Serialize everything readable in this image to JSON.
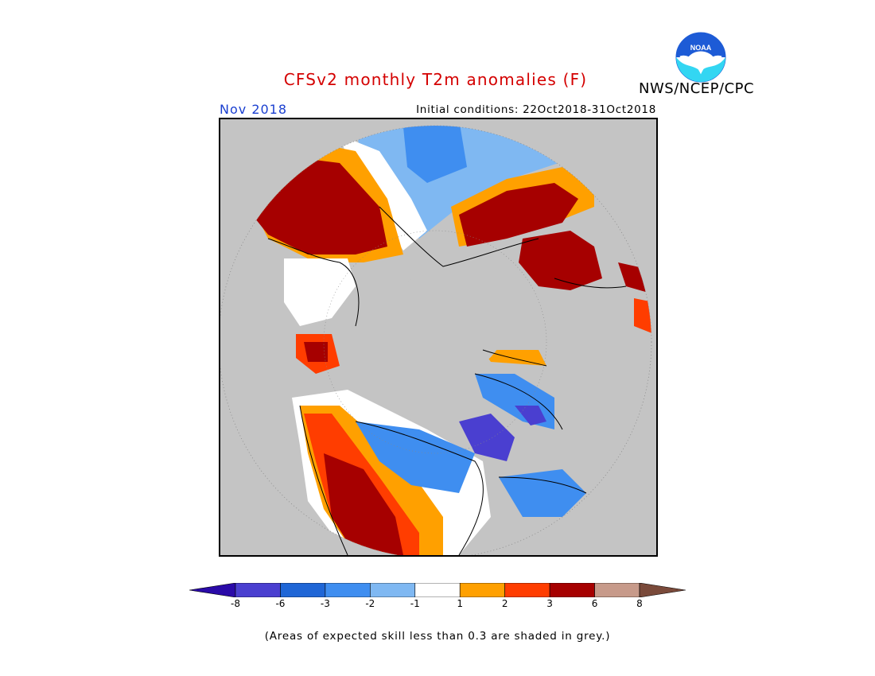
{
  "title": "CFSv2 monthly T2m anomalies (F)",
  "agency": "NWS/NCEP/CPC",
  "logo": {
    "text": "NOAA",
    "icon": "noaa-logo-icon",
    "colors": {
      "blue": "#1d5bd6",
      "cyan": "#33d6f2"
    }
  },
  "forecast_month": "Nov 2018",
  "initial_conditions": "Initial conditions: 22Oct2018-31Oct2018",
  "map": {
    "projection": "north polar stereographic",
    "missing_color": "#c4c4c4"
  },
  "legend": {
    "bins": [
      {
        "range": "< -8",
        "color": "#2a0aa8"
      },
      {
        "range": "-8 to -6",
        "color": "#4a3fd0"
      },
      {
        "range": "-6 to -3",
        "color": "#1f66d6"
      },
      {
        "range": "-3 to -2",
        "color": "#3f8ef0"
      },
      {
        "range": "-2 to -1",
        "color": "#7fb8f2"
      },
      {
        "range": "-1 to 1",
        "color": "#ffffff"
      },
      {
        "range": "1 to 2",
        "color": "#ffa000"
      },
      {
        "range": "2 to 3",
        "color": "#ff3d00"
      },
      {
        "range": "3 to 6",
        "color": "#a60000"
      },
      {
        "range": "6 to 8",
        "color": "#c79a8a"
      },
      {
        "range": "> 8",
        "color": "#7a4a3a"
      }
    ],
    "tick_labels": [
      "-8",
      "-6",
      "-3",
      "-2",
      "-1",
      "1",
      "2",
      "3",
      "6",
      "8"
    ]
  },
  "note": "(Areas of expected skill less than 0.3 are shaded in grey.)"
}
